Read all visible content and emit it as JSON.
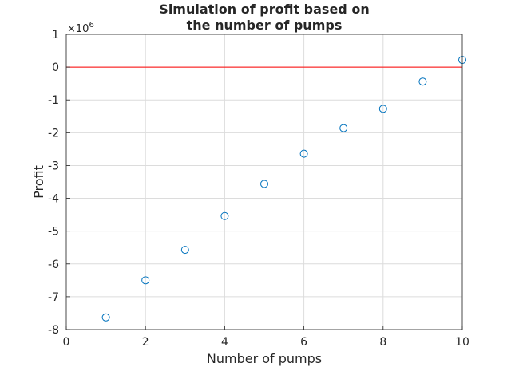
{
  "chart_data": {
    "type": "scatter",
    "title_lines": [
      "Simulation of profit based on",
      "the number of pumps"
    ],
    "xlabel": "Number of pumps",
    "ylabel": "Profit",
    "y_exponent_base": "×10",
    "y_exponent_power": "6",
    "xlim": [
      0,
      10
    ],
    "ylim": [
      -8,
      1
    ],
    "xticks": [
      0,
      2,
      4,
      6,
      8,
      10
    ],
    "xtick_labels": [
      "0",
      "2",
      "4",
      "6",
      "8",
      "10"
    ],
    "yticks": [
      1,
      0,
      -1,
      -2,
      -3,
      -4,
      -5,
      -6,
      -7,
      -8
    ],
    "ytick_labels": [
      "1",
      "0",
      "-1",
      "-2",
      "-3",
      "-4",
      "-5",
      "-6",
      "-7",
      "-8"
    ],
    "grid": true,
    "reference_line": {
      "y": 0,
      "color": "#ff0000"
    },
    "marker": "open-circle",
    "marker_color": "#0072bd",
    "x": [
      1,
      2,
      3,
      4,
      5,
      6,
      7,
      8,
      9,
      10
    ],
    "y": [
      -7.63,
      -6.5,
      -5.57,
      -4.54,
      -3.56,
      -2.64,
      -1.86,
      -1.27,
      -0.44,
      0.22
    ]
  }
}
